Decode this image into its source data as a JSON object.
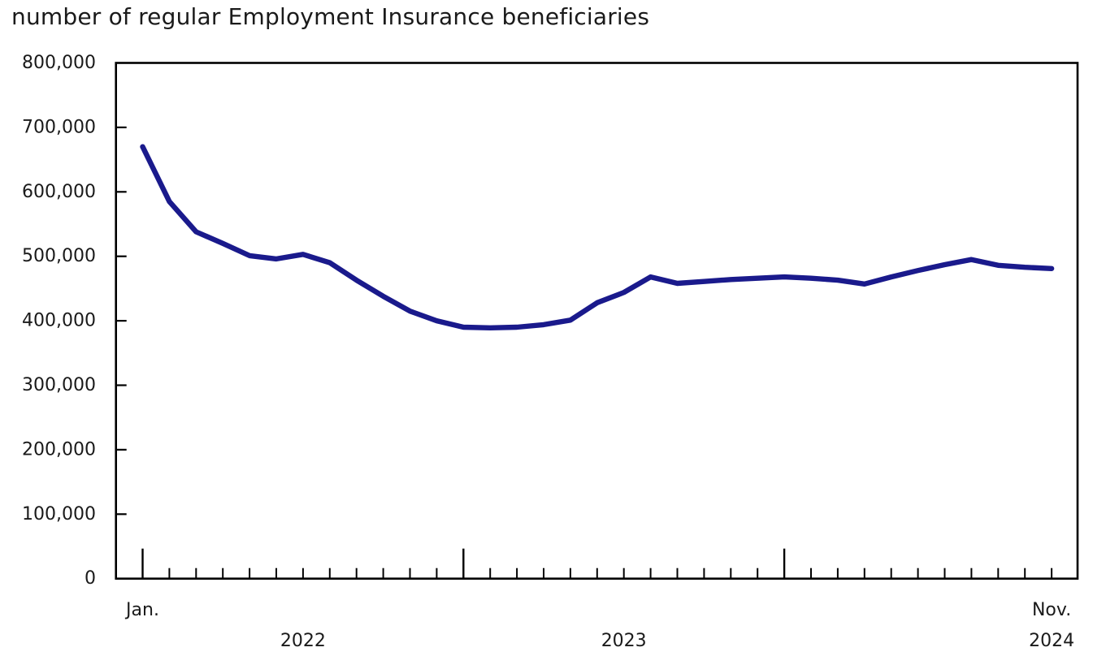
{
  "title": "number of regular Employment Insurance beneficiaries",
  "chart_data": {
    "type": "line",
    "title": "number of regular Employment Insurance beneficiaries",
    "series": [
      {
        "name": "number of regular Employment Insurance beneficiaries",
        "values": [
          670000,
          585000,
          538000,
          520000,
          501000,
          496000,
          503000,
          490000,
          463000,
          438000,
          415000,
          400000,
          390000,
          389000,
          390000,
          394000,
          401000,
          428000,
          444000,
          468000,
          458000,
          461000,
          464000,
          466000,
          468000,
          466000,
          463000,
          457000,
          468000,
          478000,
          487000,
          495000,
          486000,
          483000,
          481000
        ]
      }
    ],
    "x": [
      "Jan. 2022",
      "Feb. 2022",
      "Mar. 2022",
      "Apr. 2022",
      "May 2022",
      "Jun. 2022",
      "Jul. 2022",
      "Aug. 2022",
      "Sep. 2022",
      "Oct. 2022",
      "Nov. 2022",
      "Dec. 2022",
      "Jan. 2023",
      "Feb. 2023",
      "Mar. 2023",
      "Apr. 2023",
      "May 2023",
      "Jun. 2023",
      "Jul. 2023",
      "Aug. 2023",
      "Sep. 2023",
      "Oct. 2023",
      "Nov. 2023",
      "Dec. 2023",
      "Jan. 2024",
      "Feb. 2024",
      "Mar. 2024",
      "Apr. 2024",
      "May 2024",
      "Jun. 2024",
      "Jul. 2024",
      "Aug. 2024",
      "Sep. 2024",
      "Oct. 2024",
      "Nov. 2024"
    ],
    "xlabel": "",
    "ylabel": "",
    "ylim": [
      0,
      800000
    ],
    "ytick_interval": 100000,
    "ytick_labels": [
      "0",
      "100,000",
      "200,000",
      "300,000",
      "400,000",
      "500,000",
      "600,000",
      "700,000",
      "800,000"
    ],
    "x_annotations": {
      "first_tick_label": "Jan.",
      "last_tick_label": "Nov.",
      "year_labels": [
        "2022",
        "2023",
        "2024"
      ]
    },
    "layout_hints": {
      "grid": false,
      "legend": "none",
      "frame": "box",
      "ticks_point_inward": true,
      "year_start_tick_indices": [
        0,
        12,
        24
      ],
      "year_label_month_indices": [
        6,
        18,
        34
      ]
    },
    "colors": {
      "line": "#1a1a8c",
      "axis": "#000000",
      "text": "#1a1a1a"
    }
  }
}
